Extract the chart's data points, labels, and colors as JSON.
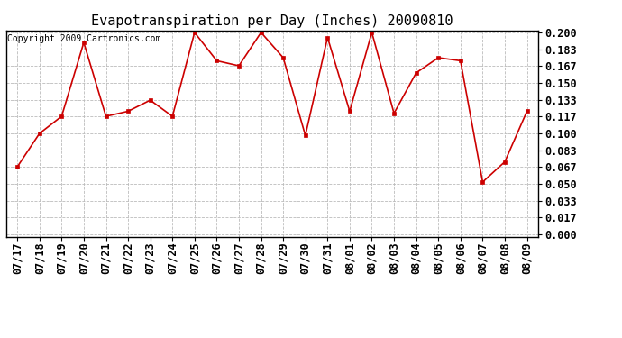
{
  "title": "Evapotranspiration per Day (Inches) 20090810",
  "copyright_text": "Copyright 2009 Cartronics.com",
  "x_labels": [
    "07/17",
    "07/18",
    "07/19",
    "07/20",
    "07/21",
    "07/22",
    "07/23",
    "07/24",
    "07/25",
    "07/26",
    "07/27",
    "07/28",
    "07/29",
    "07/30",
    "07/31",
    "08/01",
    "08/02",
    "08/03",
    "08/04",
    "08/05",
    "08/06",
    "08/07",
    "08/08",
    "08/09"
  ],
  "y_values": [
    0.067,
    0.1,
    0.117,
    0.19,
    0.117,
    0.122,
    0.133,
    0.117,
    0.2,
    0.172,
    0.167,
    0.2,
    0.175,
    0.098,
    0.195,
    0.122,
    0.2,
    0.12,
    0.16,
    0.175,
    0.172,
    0.052,
    0.072,
    0.122
  ],
  "y_ticks": [
    0.0,
    0.017,
    0.033,
    0.05,
    0.067,
    0.083,
    0.1,
    0.117,
    0.133,
    0.15,
    0.167,
    0.183,
    0.2
  ],
  "y_min": 0.0,
  "y_max": 0.2,
  "line_color": "#cc0000",
  "marker_color": "#cc0000",
  "bg_color": "#ffffff",
  "grid_color": "#bbbbbb",
  "title_fontsize": 11,
  "copyright_fontsize": 7,
  "tick_fontsize": 8.5
}
